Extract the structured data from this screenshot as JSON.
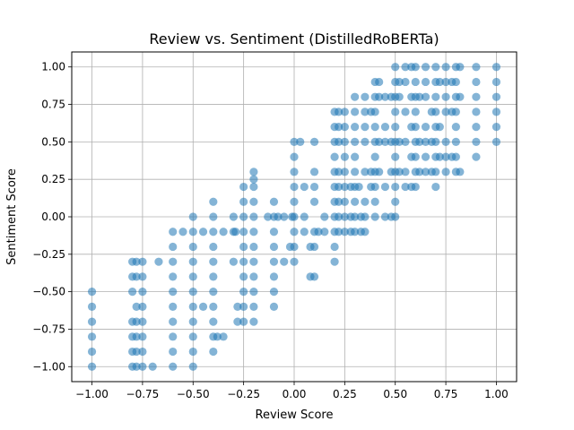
{
  "chart_data": {
    "type": "scatter",
    "title": "Review vs. Sentiment (DistilledRoBERTa)",
    "xlabel": "Review Score",
    "ylabel": "Sentiment Score",
    "xlim": [
      -1.1,
      1.1
    ],
    "ylim": [
      -1.1,
      1.1
    ],
    "xticks": [
      -1.0,
      -0.75,
      -0.5,
      -0.25,
      0.0,
      0.25,
      0.5,
      0.75,
      1.0
    ],
    "yticks": [
      -1.0,
      -0.75,
      -0.5,
      -0.25,
      0.0,
      0.25,
      0.5,
      0.75,
      1.0
    ],
    "xtick_labels": [
      "−1.00",
      "−0.75",
      "−0.50",
      "−0.25",
      "0.00",
      "0.25",
      "0.50",
      "0.75",
      "1.00"
    ],
    "ytick_labels": [
      "−1.00",
      "−0.75",
      "−0.50",
      "−0.25",
      "0.00",
      "0.25",
      "0.50",
      "0.75",
      "1.00"
    ],
    "grid": true,
    "marker_color": "#1f77b4",
    "marker_alpha": 0.55,
    "series": [
      {
        "points": [
          [
            -1.0,
            -0.5
          ],
          [
            -1.0,
            -0.6
          ],
          [
            -1.0,
            -0.7
          ],
          [
            -1.0,
            -0.8
          ],
          [
            -1.0,
            -0.9
          ],
          [
            -1.0,
            -1.0
          ],
          [
            -0.8,
            -0.3
          ],
          [
            -0.8,
            -0.4
          ],
          [
            -0.8,
            -0.5
          ],
          [
            -0.8,
            -0.7
          ],
          [
            -0.8,
            -0.8
          ],
          [
            -0.8,
            -0.9
          ],
          [
            -0.8,
            -1.0
          ],
          [
            -0.78,
            -0.3
          ],
          [
            -0.78,
            -0.4
          ],
          [
            -0.78,
            -0.6
          ],
          [
            -0.78,
            -0.7
          ],
          [
            -0.78,
            -0.8
          ],
          [
            -0.78,
            -0.9
          ],
          [
            -0.78,
            -1.0
          ],
          [
            -0.75,
            -0.3
          ],
          [
            -0.75,
            -0.4
          ],
          [
            -0.75,
            -0.5
          ],
          [
            -0.75,
            -0.6
          ],
          [
            -0.75,
            -0.7
          ],
          [
            -0.75,
            -0.8
          ],
          [
            -0.75,
            -0.9
          ],
          [
            -0.75,
            -1.0
          ],
          [
            -0.7,
            -1.0
          ],
          [
            -0.67,
            -0.3
          ],
          [
            -0.6,
            -0.1
          ],
          [
            -0.6,
            -0.2
          ],
          [
            -0.6,
            -0.3
          ],
          [
            -0.6,
            -0.4
          ],
          [
            -0.6,
            -0.5
          ],
          [
            -0.6,
            -0.6
          ],
          [
            -0.6,
            -0.7
          ],
          [
            -0.6,
            -0.8
          ],
          [
            -0.6,
            -0.9
          ],
          [
            -0.6,
            -1.0
          ],
          [
            -0.55,
            -0.1
          ],
          [
            -0.5,
            0.0
          ],
          [
            -0.5,
            -0.1
          ],
          [
            -0.5,
            -0.2
          ],
          [
            -0.5,
            -0.3
          ],
          [
            -0.5,
            -0.4
          ],
          [
            -0.5,
            -0.5
          ],
          [
            -0.5,
            -0.6
          ],
          [
            -0.5,
            -0.7
          ],
          [
            -0.5,
            -0.8
          ],
          [
            -0.5,
            -0.9
          ],
          [
            -0.5,
            -1.0
          ],
          [
            -0.45,
            -0.1
          ],
          [
            -0.45,
            -0.6
          ],
          [
            -0.4,
            0.1
          ],
          [
            -0.4,
            0.0
          ],
          [
            -0.4,
            -0.1
          ],
          [
            -0.4,
            -0.2
          ],
          [
            -0.4,
            -0.3
          ],
          [
            -0.4,
            -0.4
          ],
          [
            -0.4,
            -0.5
          ],
          [
            -0.4,
            -0.6
          ],
          [
            -0.4,
            -0.7
          ],
          [
            -0.4,
            -0.8
          ],
          [
            -0.4,
            -0.9
          ],
          [
            -0.38,
            -0.8
          ],
          [
            -0.35,
            -0.8
          ],
          [
            -0.35,
            -0.1
          ],
          [
            -0.3,
            0.0
          ],
          [
            -0.3,
            -0.1
          ],
          [
            -0.3,
            -0.3
          ],
          [
            -0.29,
            -0.1
          ],
          [
            -0.28,
            -0.6
          ],
          [
            -0.28,
            -0.7
          ],
          [
            -0.25,
            0.2
          ],
          [
            -0.25,
            0.1
          ],
          [
            -0.25,
            0.0
          ],
          [
            -0.25,
            -0.1
          ],
          [
            -0.25,
            -0.2
          ],
          [
            -0.25,
            -0.3
          ],
          [
            -0.25,
            -0.4
          ],
          [
            -0.25,
            -0.5
          ],
          [
            -0.25,
            -0.6
          ],
          [
            -0.25,
            -0.7
          ],
          [
            -0.2,
            0.3
          ],
          [
            -0.2,
            0.25
          ],
          [
            -0.2,
            0.2
          ],
          [
            -0.2,
            0.1
          ],
          [
            -0.2,
            0.0
          ],
          [
            -0.2,
            -0.1
          ],
          [
            -0.2,
            -0.2
          ],
          [
            -0.2,
            -0.3
          ],
          [
            -0.2,
            -0.4
          ],
          [
            -0.2,
            -0.5
          ],
          [
            -0.2,
            -0.6
          ],
          [
            -0.2,
            -0.7
          ],
          [
            -0.13,
            0.0
          ],
          [
            -0.1,
            0.1
          ],
          [
            -0.1,
            0.0
          ],
          [
            -0.1,
            -0.1
          ],
          [
            -0.1,
            -0.2
          ],
          [
            -0.1,
            -0.3
          ],
          [
            -0.1,
            -0.4
          ],
          [
            -0.1,
            -0.5
          ],
          [
            -0.1,
            -0.6
          ],
          [
            -0.08,
            0.0
          ],
          [
            -0.05,
            0.0
          ],
          [
            -0.05,
            -0.3
          ],
          [
            -0.02,
            -0.2
          ],
          [
            -0.01,
            0.0
          ],
          [
            0.0,
            0.5
          ],
          [
            0.0,
            0.4
          ],
          [
            0.0,
            0.3
          ],
          [
            0.0,
            0.2
          ],
          [
            0.0,
            0.1
          ],
          [
            0.0,
            0.0
          ],
          [
            0.0,
            -0.1
          ],
          [
            0.0,
            -0.2
          ],
          [
            0.0,
            -0.3
          ],
          [
            0.03,
            0.5
          ],
          [
            0.05,
            0.2
          ],
          [
            0.05,
            0.0
          ],
          [
            0.05,
            -0.1
          ],
          [
            0.08,
            -0.4
          ],
          [
            0.08,
            -0.2
          ],
          [
            0.1,
            0.5
          ],
          [
            0.1,
            0.3
          ],
          [
            0.1,
            0.2
          ],
          [
            0.1,
            0.1
          ],
          [
            0.1,
            -0.1
          ],
          [
            0.1,
            -0.2
          ],
          [
            0.1,
            -0.4
          ],
          [
            0.12,
            -0.1
          ],
          [
            0.15,
            -0.1
          ],
          [
            0.15,
            0.0
          ],
          [
            0.2,
            0.7
          ],
          [
            0.2,
            0.6
          ],
          [
            0.2,
            0.5
          ],
          [
            0.2,
            0.4
          ],
          [
            0.2,
            0.3
          ],
          [
            0.2,
            0.2
          ],
          [
            0.2,
            0.1
          ],
          [
            0.2,
            0.0
          ],
          [
            0.2,
            -0.1
          ],
          [
            0.2,
            -0.2
          ],
          [
            0.2,
            -0.3
          ],
          [
            0.22,
            0.7
          ],
          [
            0.22,
            0.6
          ],
          [
            0.22,
            0.5
          ],
          [
            0.22,
            0.3
          ],
          [
            0.22,
            0.2
          ],
          [
            0.22,
            0.1
          ],
          [
            0.22,
            0.0
          ],
          [
            0.22,
            -0.1
          ],
          [
            0.25,
            0.7
          ],
          [
            0.25,
            0.6
          ],
          [
            0.25,
            0.5
          ],
          [
            0.25,
            0.4
          ],
          [
            0.25,
            0.3
          ],
          [
            0.25,
            0.2
          ],
          [
            0.25,
            0.1
          ],
          [
            0.25,
            0.0
          ],
          [
            0.25,
            -0.1
          ],
          [
            0.28,
            0.2
          ],
          [
            0.28,
            0.0
          ],
          [
            0.28,
            -0.1
          ],
          [
            0.3,
            0.8
          ],
          [
            0.3,
            0.7
          ],
          [
            0.3,
            0.6
          ],
          [
            0.3,
            0.5
          ],
          [
            0.3,
            0.4
          ],
          [
            0.3,
            0.3
          ],
          [
            0.3,
            0.2
          ],
          [
            0.3,
            0.1
          ],
          [
            0.3,
            0.0
          ],
          [
            0.3,
            -0.1
          ],
          [
            0.32,
            0.2
          ],
          [
            0.33,
            0.0
          ],
          [
            0.33,
            -0.1
          ],
          [
            0.35,
            0.8
          ],
          [
            0.35,
            0.7
          ],
          [
            0.35,
            0.6
          ],
          [
            0.35,
            0.5
          ],
          [
            0.35,
            0.3
          ],
          [
            0.35,
            0.1
          ],
          [
            0.35,
            0.0
          ],
          [
            0.35,
            -0.1
          ],
          [
            0.38,
            0.7
          ],
          [
            0.38,
            0.3
          ],
          [
            0.38,
            0.2
          ],
          [
            0.4,
            0.9
          ],
          [
            0.4,
            0.8
          ],
          [
            0.4,
            0.7
          ],
          [
            0.4,
            0.6
          ],
          [
            0.4,
            0.5
          ],
          [
            0.4,
            0.4
          ],
          [
            0.4,
            0.3
          ],
          [
            0.4,
            0.2
          ],
          [
            0.4,
            0.1
          ],
          [
            0.4,
            0.0
          ],
          [
            0.42,
            0.9
          ],
          [
            0.42,
            0.8
          ],
          [
            0.42,
            0.5
          ],
          [
            0.42,
            0.3
          ],
          [
            0.45,
            0.8
          ],
          [
            0.45,
            0.6
          ],
          [
            0.45,
            0.5
          ],
          [
            0.45,
            0.2
          ],
          [
            0.45,
            0.0
          ],
          [
            0.48,
            0.8
          ],
          [
            0.48,
            0.5
          ],
          [
            0.48,
            0.3
          ],
          [
            0.48,
            0.0
          ],
          [
            0.5,
            1.0
          ],
          [
            0.5,
            0.9
          ],
          [
            0.5,
            0.8
          ],
          [
            0.5,
            0.7
          ],
          [
            0.5,
            0.6
          ],
          [
            0.5,
            0.5
          ],
          [
            0.5,
            0.4
          ],
          [
            0.5,
            0.3
          ],
          [
            0.5,
            0.2
          ],
          [
            0.5,
            0.1
          ],
          [
            0.5,
            0.0
          ],
          [
            0.52,
            0.9
          ],
          [
            0.52,
            0.8
          ],
          [
            0.52,
            0.5
          ],
          [
            0.52,
            0.3
          ],
          [
            0.55,
            1.0
          ],
          [
            0.55,
            0.9
          ],
          [
            0.55,
            0.7
          ],
          [
            0.55,
            0.5
          ],
          [
            0.55,
            0.3
          ],
          [
            0.55,
            0.2
          ],
          [
            0.58,
            1.0
          ],
          [
            0.58,
            0.8
          ],
          [
            0.58,
            0.6
          ],
          [
            0.58,
            0.4
          ],
          [
            0.58,
            0.2
          ],
          [
            0.6,
            1.0
          ],
          [
            0.6,
            0.9
          ],
          [
            0.6,
            0.8
          ],
          [
            0.6,
            0.7
          ],
          [
            0.6,
            0.6
          ],
          [
            0.6,
            0.5
          ],
          [
            0.6,
            0.4
          ],
          [
            0.6,
            0.3
          ],
          [
            0.6,
            0.2
          ],
          [
            0.62,
            0.8
          ],
          [
            0.62,
            0.5
          ],
          [
            0.62,
            0.3
          ],
          [
            0.65,
            1.0
          ],
          [
            0.65,
            0.9
          ],
          [
            0.65,
            0.8
          ],
          [
            0.65,
            0.6
          ],
          [
            0.65,
            0.5
          ],
          [
            0.65,
            0.4
          ],
          [
            0.65,
            0.3
          ],
          [
            0.68,
            0.7
          ],
          [
            0.68,
            0.5
          ],
          [
            0.68,
            0.3
          ],
          [
            0.7,
            1.0
          ],
          [
            0.7,
            0.9
          ],
          [
            0.7,
            0.8
          ],
          [
            0.7,
            0.7
          ],
          [
            0.7,
            0.6
          ],
          [
            0.7,
            0.5
          ],
          [
            0.7,
            0.4
          ],
          [
            0.7,
            0.3
          ],
          [
            0.7,
            0.2
          ],
          [
            0.72,
            0.9
          ],
          [
            0.72,
            0.6
          ],
          [
            0.72,
            0.4
          ],
          [
            0.75,
            1.0
          ],
          [
            0.75,
            0.9
          ],
          [
            0.75,
            0.8
          ],
          [
            0.75,
            0.7
          ],
          [
            0.75,
            0.5
          ],
          [
            0.75,
            0.4
          ],
          [
            0.75,
            0.3
          ],
          [
            0.78,
            0.9
          ],
          [
            0.78,
            0.7
          ],
          [
            0.78,
            0.4
          ],
          [
            0.8,
            1.0
          ],
          [
            0.8,
            0.9
          ],
          [
            0.8,
            0.8
          ],
          [
            0.8,
            0.7
          ],
          [
            0.8,
            0.6
          ],
          [
            0.8,
            0.5
          ],
          [
            0.8,
            0.4
          ],
          [
            0.8,
            0.3
          ],
          [
            0.82,
            1.0
          ],
          [
            0.82,
            0.8
          ],
          [
            0.82,
            0.3
          ],
          [
            0.9,
            1.0
          ],
          [
            0.9,
            0.9
          ],
          [
            0.9,
            0.8
          ],
          [
            0.9,
            0.7
          ],
          [
            0.9,
            0.6
          ],
          [
            0.9,
            0.5
          ],
          [
            0.9,
            0.4
          ],
          [
            1.0,
            1.0
          ],
          [
            1.0,
            0.9
          ],
          [
            1.0,
            0.8
          ],
          [
            1.0,
            0.7
          ],
          [
            1.0,
            0.6
          ],
          [
            1.0,
            0.5
          ]
        ]
      }
    ]
  }
}
